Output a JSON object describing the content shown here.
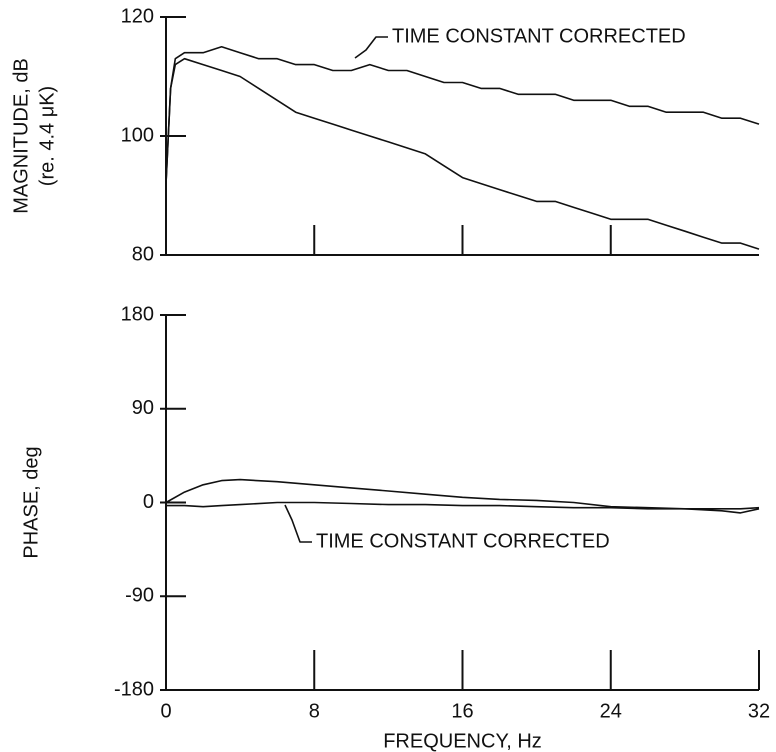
{
  "chart_data": [
    {
      "type": "line",
      "ylabel": [
        "MAGNITUDE, dB",
        "(re. 4.4 μK)"
      ],
      "annotation": "TIME CONSTANT CORRECTED",
      "x": [
        0,
        0.25,
        0.5,
        1,
        2,
        3,
        4,
        5,
        6,
        7,
        8,
        9,
        10,
        11,
        12,
        13,
        14,
        15,
        16,
        17,
        18,
        19,
        20,
        21,
        22,
        23,
        24,
        25,
        26,
        27,
        28,
        29,
        30,
        31,
        32
      ],
      "series": [
        {
          "color": "#111111",
          "values": [
            92,
            108,
            113,
            114,
            114,
            115,
            114,
            113,
            113,
            112,
            112,
            111,
            111,
            112,
            111,
            111,
            110,
            109,
            109,
            108,
            108,
            107,
            107,
            107,
            106,
            106,
            106,
            105,
            105,
            104,
            104,
            104,
            103,
            103,
            102
          ]
        },
        {
          "color": "#111111",
          "values": [
            92,
            108,
            112,
            113,
            112,
            111,
            110,
            108,
            106,
            104,
            103,
            102,
            101,
            100,
            99,
            98,
            97,
            95,
            93,
            92,
            91,
            90,
            89,
            89,
            88,
            87,
            86,
            86,
            86,
            85,
            84,
            83,
            82,
            82,
            81
          ]
        }
      ],
      "xlim": [
        0,
        32
      ],
      "xticks": [
        8,
        16,
        24
      ],
      "ylim": [
        80,
        120
      ],
      "yticks": [
        80,
        100,
        120
      ]
    },
    {
      "type": "line",
      "ylabel": [
        "PHASE, deg"
      ],
      "xlabel": "FREQUENCY, Hz",
      "annotation": "TIME CONSTANT CORRECTED",
      "x": [
        0,
        1,
        2,
        3,
        4,
        6,
        8,
        10,
        12,
        14,
        16,
        18,
        20,
        22,
        24,
        26,
        28,
        30,
        31,
        32
      ],
      "series": [
        {
          "color": "#111111",
          "values": [
            0,
            10,
            17,
            21,
            22,
            20,
            17,
            14,
            11,
            8,
            5,
            3,
            2,
            0,
            -4,
            -5,
            -6,
            -8,
            -10,
            -6
          ]
        },
        {
          "color": "#111111",
          "values": [
            -3,
            -3,
            -4,
            -3,
            -2,
            0,
            0,
            -1,
            -2,
            -2,
            -3,
            -3,
            -4,
            -5,
            -5,
            -6,
            -6,
            -6,
            -6,
            -5
          ]
        }
      ],
      "xlim": [
        0,
        32
      ],
      "xticks": [
        0,
        8,
        16,
        24,
        32
      ],
      "ylim": [
        -180,
        180
      ],
      "yticks": [
        -180,
        -90,
        0,
        90,
        180
      ]
    }
  ]
}
